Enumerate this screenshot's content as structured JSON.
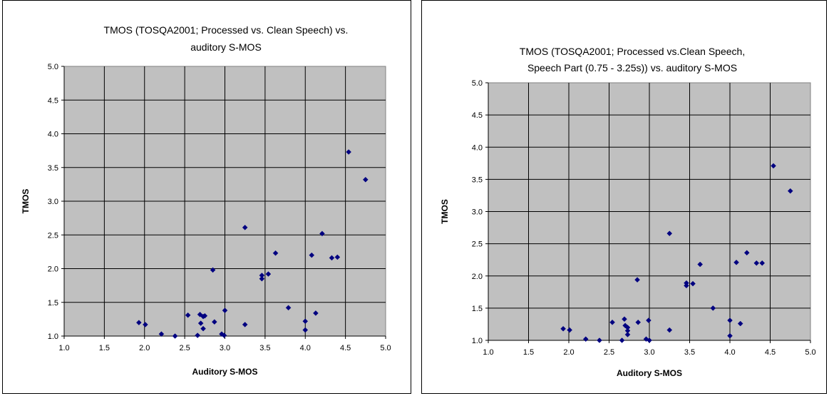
{
  "chart_data": [
    {
      "type": "scatter",
      "title_lines": [
        "TMOS (TOSQA2001; Processed vs. Clean Speech) vs.",
        "auditory S-MOS"
      ],
      "xlabel": "Auditory S-MOS",
      "ylabel": "TMOS",
      "xlim": [
        1.0,
        5.0
      ],
      "ylim": [
        1.0,
        5.0
      ],
      "xticks": [
        "1.0",
        "1.5",
        "2.0",
        "2.5",
        "3.0",
        "3.5",
        "4.0",
        "4.5",
        "5.0"
      ],
      "yticks": [
        "1.0",
        "1.5",
        "2.0",
        "2.5",
        "3.0",
        "3.5",
        "4.0",
        "4.5",
        "5.0"
      ],
      "grid": true,
      "plot_background": "#c0c0c0",
      "marker_color": "#000080",
      "points": [
        [
          1.93,
          1.2
        ],
        [
          2.01,
          1.17
        ],
        [
          2.21,
          1.03
        ],
        [
          2.38,
          1.0
        ],
        [
          2.54,
          1.31
        ],
        [
          2.66,
          1.01
        ],
        [
          2.69,
          1.32
        ],
        [
          2.7,
          1.19
        ],
        [
          2.73,
          1.29
        ],
        [
          2.73,
          1.11
        ],
        [
          2.75,
          1.3
        ],
        [
          2.85,
          1.98
        ],
        [
          2.87,
          1.21
        ],
        [
          2.96,
          1.03
        ],
        [
          2.99,
          1.01
        ],
        [
          3.0,
          1.38
        ],
        [
          3.25,
          2.61
        ],
        [
          3.25,
          1.17
        ],
        [
          3.46,
          1.9
        ],
        [
          3.46,
          1.85
        ],
        [
          3.54,
          1.92
        ],
        [
          3.63,
          2.23
        ],
        [
          3.79,
          1.42
        ],
        [
          4.0,
          1.22
        ],
        [
          4.0,
          1.09
        ],
        [
          4.08,
          2.2
        ],
        [
          4.13,
          1.34
        ],
        [
          4.21,
          2.52
        ],
        [
          4.33,
          2.16
        ],
        [
          4.4,
          2.17
        ],
        [
          4.54,
          3.73
        ],
        [
          4.75,
          3.32
        ]
      ]
    },
    {
      "type": "scatter",
      "title_lines": [
        "TMOS (TOSQA2001; Processed vs.Clean Speech,",
        "Speech Part (0.75 - 3.25s)) vs. auditory S-MOS"
      ],
      "xlabel": "Auditory S-MOS",
      "ylabel": "TMOS",
      "xlim": [
        1.0,
        5.0
      ],
      "ylim": [
        1.0,
        5.0
      ],
      "xticks": [
        "1.0",
        "1.5",
        "2.0",
        "2.5",
        "3.0",
        "3.5",
        "4.0",
        "4.5",
        "5.0"
      ],
      "yticks": [
        "1.0",
        "1.5",
        "2.0",
        "2.5",
        "3.0",
        "3.5",
        "4.0",
        "4.5",
        "5.0"
      ],
      "grid": true,
      "plot_background": "#c0c0c0",
      "marker_color": "#000080",
      "points": [
        [
          1.93,
          1.18
        ],
        [
          2.01,
          1.16
        ],
        [
          2.21,
          1.02
        ],
        [
          2.38,
          1.0
        ],
        [
          2.54,
          1.28
        ],
        [
          2.66,
          1.0
        ],
        [
          2.69,
          1.33
        ],
        [
          2.7,
          1.23
        ],
        [
          2.73,
          1.2
        ],
        [
          2.73,
          1.15
        ],
        [
          2.73,
          1.09
        ],
        [
          2.85,
          1.94
        ],
        [
          2.86,
          1.28
        ],
        [
          2.96,
          1.02
        ],
        [
          2.99,
          1.31
        ],
        [
          3.0,
          1.0
        ],
        [
          3.25,
          2.66
        ],
        [
          3.25,
          1.16
        ],
        [
          3.46,
          1.89
        ],
        [
          3.46,
          1.85
        ],
        [
          3.54,
          1.88
        ],
        [
          3.63,
          2.18
        ],
        [
          3.79,
          1.5
        ],
        [
          4.0,
          1.31
        ],
        [
          4.0,
          1.07
        ],
        [
          4.08,
          2.21
        ],
        [
          4.13,
          1.26
        ],
        [
          4.21,
          2.36
        ],
        [
          4.33,
          2.2
        ],
        [
          4.4,
          2.2
        ],
        [
          4.54,
          3.71
        ],
        [
          4.75,
          3.32
        ]
      ]
    }
  ]
}
